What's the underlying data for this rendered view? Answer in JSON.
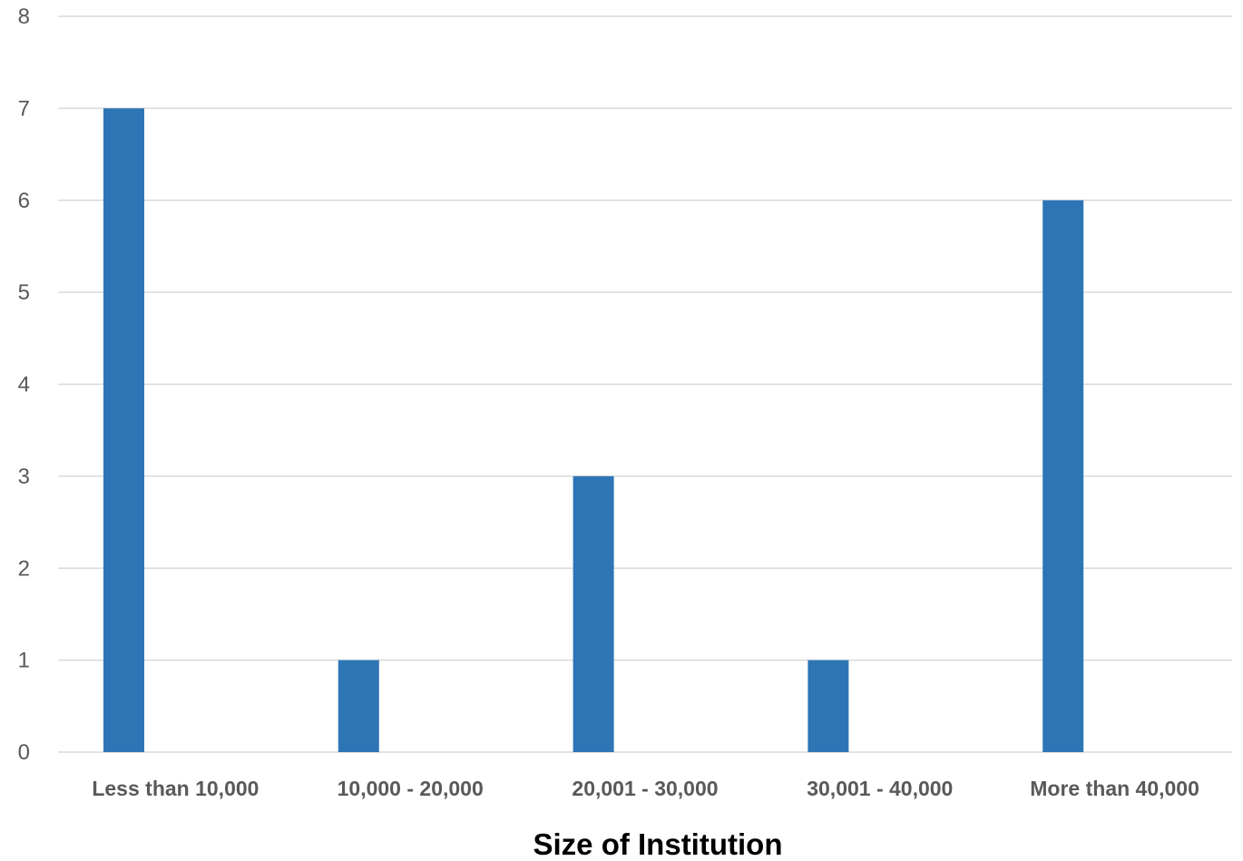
{
  "chart_data": {
    "type": "bar",
    "categories": [
      "Less than 10,000",
      "10,000 - 20,000",
      "20,001 - 30,000",
      "30,001 - 40,000",
      "More than 40,000"
    ],
    "series": [
      {
        "values": [
          7,
          1,
          3,
          1,
          6
        ],
        "color": "#2e75b6"
      }
    ],
    "title": "",
    "xlabel": "Size of Institution",
    "ylabel": "",
    "ylim": [
      0,
      8
    ],
    "yticks": [
      "0",
      "1",
      "2",
      "3",
      "4",
      "5",
      "6",
      "7",
      "8"
    ],
    "grid": true,
    "legend": "none"
  }
}
